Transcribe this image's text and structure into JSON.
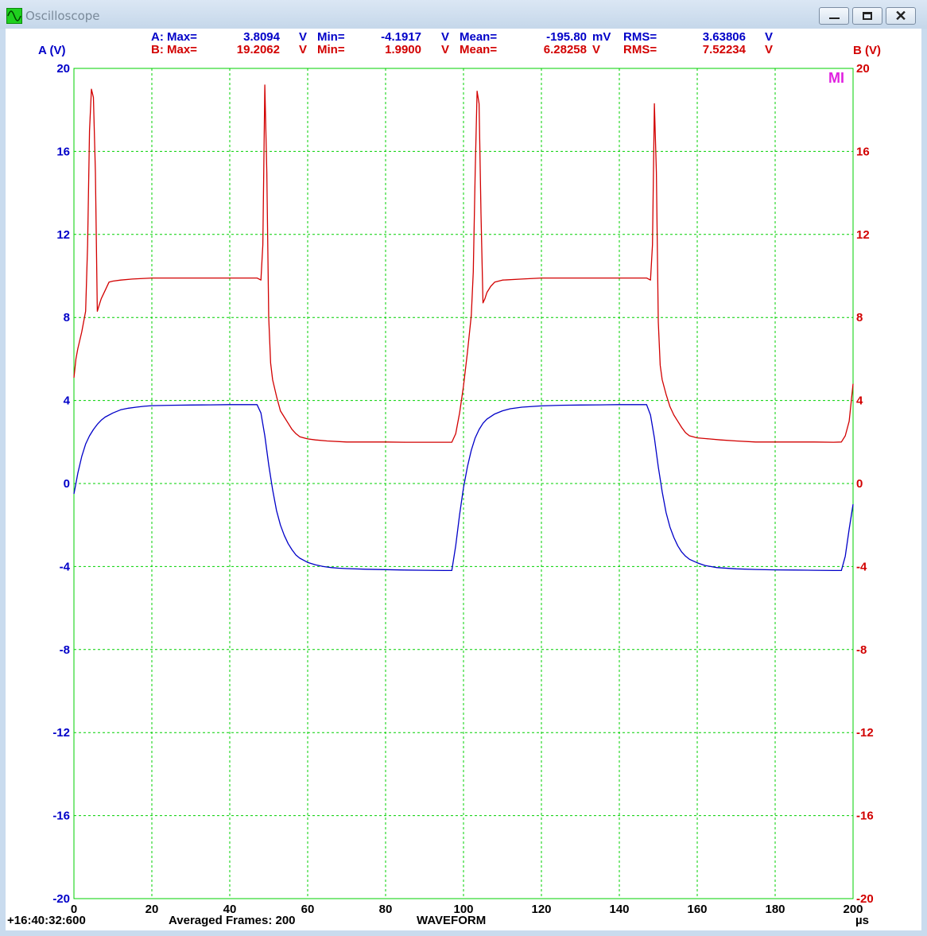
{
  "window": {
    "title": "Oscilloscope",
    "icon": "sine-wave-icon",
    "controls": {
      "minimize": "minimize-icon",
      "maximize": "maximize-icon",
      "close": "✕"
    }
  },
  "colors": {
    "channel_a": "#0000c8",
    "channel_b": "#d20000",
    "grid": "#00d000",
    "marker": "#e020e0"
  },
  "stats": {
    "a": [
      {
        "label": "A: Max=",
        "value": "3.8094",
        "unit": "V"
      },
      {
        "label": "Min=",
        "value": "-4.1917",
        "unit": "V"
      },
      {
        "label": "Mean=",
        "value": "-195.80",
        "unit": "mV"
      },
      {
        "label": "RMS=",
        "value": "3.63806",
        "unit": "V"
      }
    ],
    "b": [
      {
        "label": "B: Max=",
        "value": "19.2062",
        "unit": "V"
      },
      {
        "label": "Min=",
        "value": "1.9900",
        "unit": "V"
      },
      {
        "label": "Mean=",
        "value": "6.28258",
        "unit": "V"
      },
      {
        "label": "RMS=",
        "value": "7.52234",
        "unit": "V"
      }
    ]
  },
  "footer": {
    "timestamp": "+16:40:32:600",
    "frames": "Averaged Frames: 200",
    "mode": "WAVEFORM"
  },
  "marker": "MI",
  "chart_data": {
    "type": "line",
    "xlabel": "µs",
    "ylabel_left": "A (V)",
    "ylabel_right": "B (V)",
    "xlim": [
      0,
      200
    ],
    "ylim": [
      -20,
      20
    ],
    "x_ticks": [
      0,
      20,
      40,
      60,
      80,
      100,
      120,
      140,
      160,
      180,
      200
    ],
    "y_ticks": [
      -20,
      -16,
      -12,
      -8,
      -4,
      0,
      4,
      8,
      12,
      16,
      20
    ],
    "grid": true,
    "series": [
      {
        "name": "A",
        "axis": "left",
        "color": "#0000c8",
        "x": [
          0,
          0.5,
          1,
          2,
          3,
          4,
          5,
          6,
          7,
          8,
          10,
          12,
          14,
          16,
          18,
          20,
          25,
          30,
          35,
          40,
          45,
          47,
          48,
          49,
          50,
          51,
          52,
          53,
          54,
          55,
          56,
          57,
          58,
          60,
          62,
          64,
          66,
          68,
          70,
          75,
          80,
          85,
          90,
          95,
          96,
          97,
          98,
          99,
          100,
          101,
          102,
          103,
          104,
          105,
          106,
          108,
          110,
          112,
          115,
          120,
          125,
          130,
          135,
          140,
          145,
          147,
          148,
          149,
          150,
          151,
          152,
          153,
          154,
          155,
          156,
          157,
          158,
          160,
          162,
          165,
          168,
          170,
          175,
          180,
          185,
          190,
          195,
          197,
          198,
          199,
          200
        ],
        "y": [
          -0.5,
          0.0,
          0.5,
          1.3,
          1.9,
          2.3,
          2.6,
          2.85,
          3.05,
          3.2,
          3.4,
          3.55,
          3.63,
          3.68,
          3.72,
          3.75,
          3.77,
          3.78,
          3.79,
          3.8,
          3.8,
          3.8,
          3.4,
          2.3,
          0.9,
          -0.3,
          -1.3,
          -2.0,
          -2.5,
          -2.9,
          -3.2,
          -3.45,
          -3.6,
          -3.8,
          -3.92,
          -4.0,
          -4.05,
          -4.08,
          -4.1,
          -4.13,
          -4.15,
          -4.17,
          -4.18,
          -4.19,
          -4.19,
          -4.19,
          -3.0,
          -1.5,
          -0.2,
          0.8,
          1.6,
          2.2,
          2.6,
          2.9,
          3.1,
          3.35,
          3.5,
          3.6,
          3.68,
          3.74,
          3.77,
          3.78,
          3.79,
          3.8,
          3.8,
          3.8,
          3.3,
          2.2,
          0.8,
          -0.4,
          -1.4,
          -2.1,
          -2.6,
          -3.0,
          -3.3,
          -3.5,
          -3.65,
          -3.82,
          -3.95,
          -4.05,
          -4.09,
          -4.11,
          -4.14,
          -4.16,
          -4.17,
          -4.18,
          -4.19,
          -4.19,
          -3.5,
          -2.2,
          -1.0
        ]
      },
      {
        "name": "B",
        "axis": "right",
        "color": "#d20000",
        "x": [
          0,
          0.5,
          1,
          2,
          3,
          3.5,
          4,
          4.5,
          5,
          5.5,
          6,
          6.5,
          7,
          8,
          9,
          10,
          12,
          15,
          20,
          25,
          30,
          35,
          40,
          45,
          47,
          48,
          48.5,
          49,
          49.5,
          50,
          50.5,
          51,
          52,
          53,
          54,
          55,
          56,
          57,
          58,
          60,
          62,
          65,
          70,
          75,
          80,
          85,
          90,
          95,
          97,
          98,
          99,
          100,
          101,
          102,
          102.5,
          103,
          103.5,
          104,
          104.5,
          105,
          105.5,
          106,
          107,
          108,
          110,
          115,
          120,
          125,
          130,
          135,
          140,
          145,
          147,
          148,
          148.5,
          149,
          149.5,
          150,
          150.5,
          151,
          152,
          153,
          154,
          155,
          156,
          157,
          158,
          160,
          163,
          166,
          170,
          175,
          180,
          185,
          190,
          195,
          197,
          198,
          199,
          200
        ],
        "y": [
          5.1,
          6.0,
          6.5,
          7.3,
          8.3,
          11.5,
          17.0,
          19.0,
          18.6,
          15.0,
          8.3,
          8.6,
          8.9,
          9.3,
          9.7,
          9.75,
          9.8,
          9.85,
          9.9,
          9.9,
          9.9,
          9.9,
          9.9,
          9.9,
          9.9,
          9.8,
          11.5,
          19.2,
          15.0,
          8.0,
          5.8,
          5.0,
          4.2,
          3.5,
          3.2,
          2.9,
          2.6,
          2.4,
          2.25,
          2.15,
          2.1,
          2.05,
          2.0,
          2.0,
          2.0,
          1.99,
          1.99,
          1.99,
          1.99,
          2.4,
          3.4,
          4.7,
          6.3,
          8.1,
          10.2,
          15.0,
          18.9,
          18.3,
          13.0,
          8.7,
          8.9,
          9.2,
          9.5,
          9.7,
          9.8,
          9.85,
          9.9,
          9.9,
          9.9,
          9.9,
          9.9,
          9.9,
          9.9,
          9.8,
          11.5,
          18.3,
          15.0,
          7.8,
          5.7,
          5.0,
          4.3,
          3.7,
          3.3,
          3.0,
          2.7,
          2.45,
          2.3,
          2.2,
          2.15,
          2.1,
          2.05,
          2.0,
          2.0,
          2.0,
          2.0,
          1.99,
          2.0,
          2.3,
          3.0,
          4.8
        ]
      }
    ]
  }
}
